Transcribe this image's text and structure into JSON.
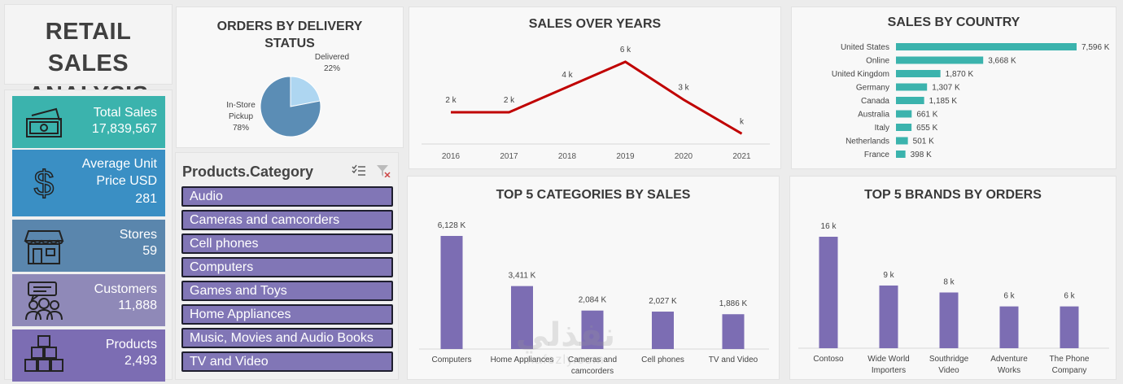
{
  "dashboard": {
    "title_line1": "RETAIL SALES",
    "title_line2": "ANALYSIS"
  },
  "kpis": [
    {
      "label": "Total Sales",
      "value": "17,839,567",
      "icon": "money-icon",
      "color": "#3bb3ad"
    },
    {
      "label": "Average Unit Price USD",
      "label_line1": "Average Unit",
      "label_line2": "Price USD",
      "value": "281",
      "icon": "dollar-icon",
      "color": "#3a8fc4"
    },
    {
      "label": "Stores",
      "value": "59",
      "icon": "store-icon",
      "color": "#5a86ad"
    },
    {
      "label": "Customers",
      "value": "11,888",
      "icon": "customers-icon",
      "color": "#8f89b8"
    },
    {
      "label": "Products",
      "value": "2,493",
      "icon": "boxes-icon",
      "color": "#7c6db3"
    }
  ],
  "slicer": {
    "header": "Products.Category",
    "items": [
      "Audio",
      "Cameras and camcorders",
      "Cell phones",
      "Computers",
      "Games and Toys",
      "Home Appliances",
      "Music, Movies and Audio Books",
      "TV and Video"
    ]
  },
  "watermark": {
    "arabic": "نفذلي",
    "latin": "nafezly.com"
  },
  "charts": {
    "pie": {
      "title_line1": "ORDERS BY DELIVERY",
      "title_line2": "STATUS",
      "delivered_label": "Delivered",
      "delivered_pct": "22%",
      "pickup_label_line1": "In-Store",
      "pickup_label_line2": "Pickup",
      "pickup_pct": "78%"
    },
    "line": {
      "title": "SALES OVER YEARS",
      "years": [
        "2016",
        "2017",
        "2018",
        "2019",
        "2020",
        "2021"
      ],
      "labels": [
        "2 k",
        "2 k",
        "4 k",
        "6 k",
        "3 k",
        "k"
      ]
    },
    "country": {
      "title": "SALES BY COUNTRY"
    },
    "categories": {
      "title": "TOP 5 CATEGORIES BY SALES"
    },
    "brands": {
      "title": "TOP 5 BRANDS BY ORDERS"
    }
  },
  "chart_data": [
    {
      "type": "pie",
      "title": "ORDERS BY DELIVERY STATUS",
      "categories": [
        "Delivered",
        "In-Store Pickup"
      ],
      "values": [
        22,
        78
      ],
      "colors": [
        "#aed6f1",
        "#5b8db5"
      ]
    },
    {
      "type": "line",
      "title": "SALES OVER YEARS",
      "x": [
        2016,
        2017,
        2018,
        2019,
        2020,
        2021
      ],
      "values": [
        2,
        2,
        4,
        6,
        3,
        0.3
      ],
      "data_labels": [
        "2 k",
        "2 k",
        "4 k",
        "6 k",
        "3 k",
        "k"
      ],
      "color": "#c00000",
      "grid": false
    },
    {
      "type": "bar",
      "orientation": "horizontal",
      "title": "SALES BY COUNTRY",
      "categories": [
        "United States",
        "Online",
        "United Kingdom",
        "Germany",
        "Canada",
        "Australia",
        "Italy",
        "Netherlands",
        "France"
      ],
      "values": [
        7596,
        3668,
        1870,
        1307,
        1185,
        661,
        655,
        501,
        398
      ],
      "data_labels": [
        "7,596 K",
        "3,668 K",
        "1,870 K",
        "1,307 K",
        "1,185 K",
        "661 K",
        "655 K",
        "501 K",
        "398 K"
      ],
      "color": "#3bb3ad"
    },
    {
      "type": "bar",
      "title": "TOP 5 CATEGORIES BY SALES",
      "categories": [
        "Computers",
        "Home Appliances",
        "Cameras and camcorders",
        "Cell phones",
        "TV and Video"
      ],
      "category_lines": [
        [
          "Computers"
        ],
        [
          "Home Appliances"
        ],
        [
          "Cameras and",
          "camcorders"
        ],
        [
          "Cell phones"
        ],
        [
          "TV and Video"
        ]
      ],
      "values": [
        6128,
        3411,
        2084,
        2027,
        1886
      ],
      "data_labels": [
        "6,128 K",
        "3,411 K",
        "2,084 K",
        "2,027 K",
        "1,886 K"
      ],
      "color": "#7c6db3"
    },
    {
      "type": "bar",
      "title": "TOP 5 BRANDS BY ORDERS",
      "categories": [
        "Contoso",
        "Wide World Importers",
        "Southridge Video",
        "Adventure Works",
        "The Phone Company"
      ],
      "category_lines": [
        [
          "Contoso"
        ],
        [
          "Wide World",
          "Importers"
        ],
        [
          "Southridge",
          "Video"
        ],
        [
          "Adventure",
          "Works"
        ],
        [
          "The Phone",
          "Company"
        ]
      ],
      "values": [
        16,
        9,
        8,
        6,
        6
      ],
      "data_labels": [
        "16 k",
        "9 k",
        "8 k",
        "6 k",
        "6 k"
      ],
      "color": "#7c6db3"
    }
  ]
}
